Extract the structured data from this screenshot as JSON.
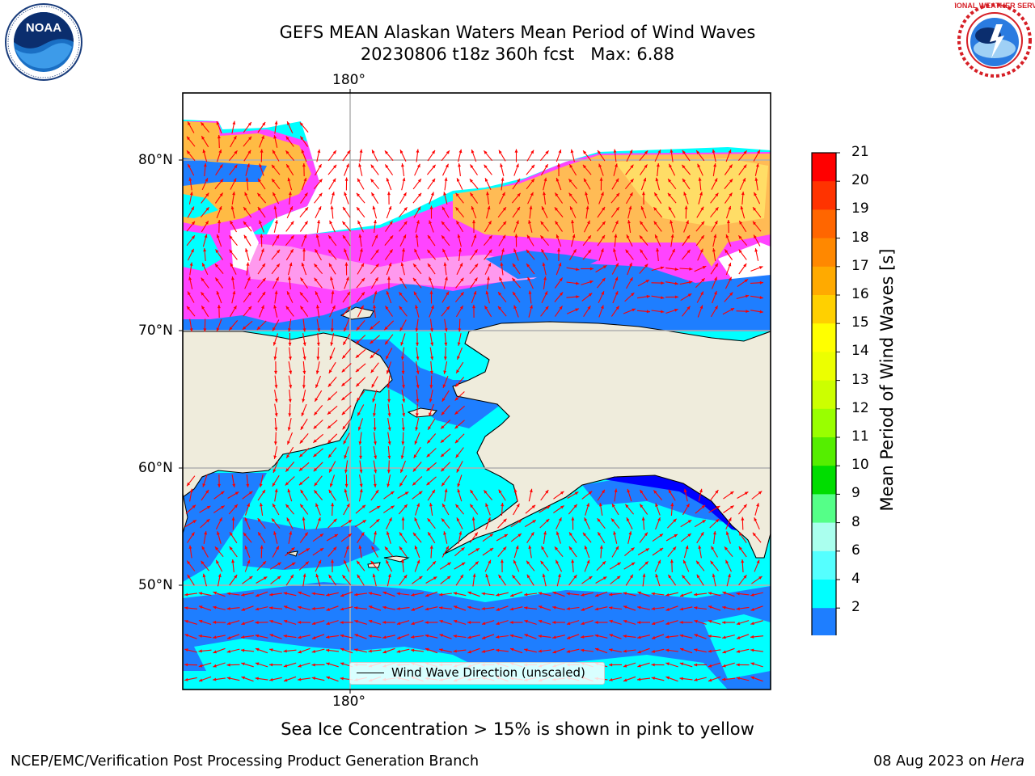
{
  "title": {
    "line1": "GEFS MEAN Alaskan Waters Mean Period of Wind Waves",
    "line2": "20230806 t18z 360h fcst   Max: 6.88"
  },
  "logos": {
    "left": {
      "name": "noaa-logo",
      "text": "NOAA"
    },
    "right": {
      "name": "nws-logo",
      "text": "NATIONAL WEATHER SERVICE"
    }
  },
  "map": {
    "lon_labels": {
      "top": "180°",
      "bottom": "180°"
    },
    "lat_labels": [
      "80°N",
      "70°N",
      "60°N",
      "50°N"
    ],
    "colors": {
      "land": "#efecdc",
      "ocean_2_4": "#1e7eff",
      "ocean_4_6": "#00ffff",
      "ice_low": "#ff33ff",
      "ice_mid": "#ff88ee",
      "ice_high": "#ffcc33",
      "ice_top": "#ffee55",
      "arrow": "#ff0000",
      "gridline": "#b0b0b0"
    },
    "legend": {
      "label": "Wind Wave Direction (unscaled)"
    }
  },
  "colorbar": {
    "label": "Mean Period of Wind Waves [s]",
    "ticks": [
      "21",
      "20",
      "19",
      "18",
      "17",
      "16",
      "15",
      "14",
      "13",
      "12",
      "11",
      "10",
      "9",
      "8",
      "6",
      "4",
      "2"
    ],
    "colors": [
      "#ff0000",
      "#ff3300",
      "#ff6600",
      "#ff8800",
      "#ffaa00",
      "#ffd000",
      "#ffff00",
      "#ecff00",
      "#ccff00",
      "#99ff00",
      "#55ee00",
      "#00dd00",
      "#55ff88",
      "#aaffee",
      "#55ffff",
      "#00ffff",
      "#1e7eff"
    ],
    "under_color": "#0000ff"
  },
  "caption": "Sea Ice Concentration > 15% is shown in pink to yellow",
  "footer": {
    "left": "NCEP/EMC/Verification Post Processing Product Generation Branch",
    "right_prefix": "08 Aug 2023 on ",
    "right_machine": "Hera"
  }
}
